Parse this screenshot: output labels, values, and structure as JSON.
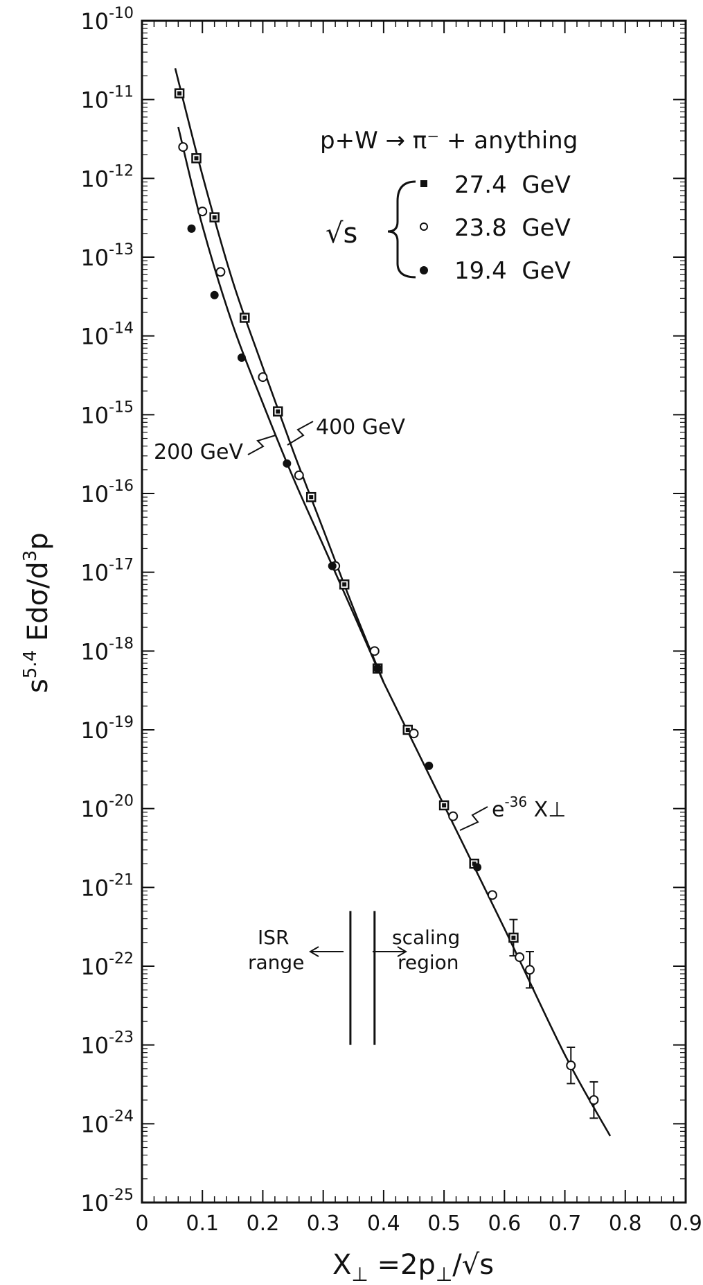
{
  "chart_data": {
    "type": "scatter",
    "title": "",
    "xlabel_main": "X",
    "xlabel_sub": "⊥",
    "xlabel_rest": " =2p",
    "xlabel_sub2": "⊥",
    "xlabel_tail": "/√s",
    "ylabel": "s",
    "ylabel_exp": "5.4",
    "ylabel_rest": " Edσ/d",
    "ylabel_exp2": "3",
    "ylabel_tail": "p",
    "xlim": [
      0,
      0.9
    ],
    "ylim_log10": [
      -25,
      -10
    ],
    "y_scale": "log",
    "x_ticks": [
      "0",
      "0.1",
      "0.2",
      "0.3",
      "0.4",
      "0.5",
      "0.6",
      "0.7",
      "0.8",
      "0.9"
    ],
    "y_ticks": [
      {
        "base": "10",
        "exp": "-10"
      },
      {
        "base": "10",
        "exp": "-11"
      },
      {
        "base": "10",
        "exp": "-12"
      },
      {
        "base": "10",
        "exp": "-13"
      },
      {
        "base": "10",
        "exp": "-14"
      },
      {
        "base": "10",
        "exp": "-15"
      },
      {
        "base": "10",
        "exp": "-16"
      },
      {
        "base": "10",
        "exp": "-17"
      },
      {
        "base": "10",
        "exp": "-18"
      },
      {
        "base": "10",
        "exp": "-19"
      },
      {
        "base": "10",
        "exp": "-20"
      },
      {
        "base": "10",
        "exp": "-21"
      },
      {
        "base": "10",
        "exp": "-22"
      },
      {
        "base": "10",
        "exp": "-23"
      },
      {
        "base": "10",
        "exp": "-24"
      },
      {
        "base": "10",
        "exp": "-25"
      }
    ],
    "legend": {
      "process": "p+W → π⁻ + anything",
      "sqrt_s": "√s",
      "entries": [
        "27.4  GeV",
        "23.8  GeV",
        "19.4  GeV"
      ]
    },
    "series": [
      {
        "name": "27.4  GeV",
        "marker": "filled-square",
        "points": [
          {
            "x": 0.062,
            "y": 1.2e-11
          },
          {
            "x": 0.09,
            "y": 1.8e-12
          },
          {
            "x": 0.12,
            "y": 3.2e-13
          },
          {
            "x": 0.17,
            "y": 1.7e-14
          },
          {
            "x": 0.225,
            "y": 1.1e-15
          },
          {
            "x": 0.28,
            "y": 9e-17
          },
          {
            "x": 0.335,
            "y": 7e-18
          },
          {
            "x": 0.39,
            "y": 6e-19
          },
          {
            "x": 0.44,
            "y": 1e-19
          },
          {
            "x": 0.5,
            "y": 1.1e-20
          },
          {
            "x": 0.55,
            "y": 2e-21
          },
          {
            "x": 0.615,
            "y": 2.3e-22
          }
        ],
        "error_bars_at_x": [
          0.615
        ]
      },
      {
        "name": "23.8  GeV",
        "marker": "open-circle",
        "points": [
          {
            "x": 0.068,
            "y": 2.5e-12
          },
          {
            "x": 0.1,
            "y": 3.8e-13
          },
          {
            "x": 0.13,
            "y": 6.5e-14
          },
          {
            "x": 0.2,
            "y": 3e-15
          },
          {
            "x": 0.26,
            "y": 1.7e-16
          },
          {
            "x": 0.32,
            "y": 1.2e-17
          },
          {
            "x": 0.385,
            "y": 1e-18
          },
          {
            "x": 0.45,
            "y": 9e-20
          },
          {
            "x": 0.515,
            "y": 8e-21
          },
          {
            "x": 0.58,
            "y": 8e-22
          },
          {
            "x": 0.625,
            "y": 1.3e-22
          },
          {
            "x": 0.642,
            "y": 9e-23
          },
          {
            "x": 0.71,
            "y": 5.5e-24
          },
          {
            "x": 0.748,
            "y": 2e-24
          }
        ],
        "error_bars_at_x": [
          0.642,
          0.71,
          0.748
        ]
      },
      {
        "name": "19.4  GeV",
        "marker": "filled-circle",
        "points": [
          {
            "x": 0.082,
            "y": 2.3e-13
          },
          {
            "x": 0.12,
            "y": 3.3e-14
          },
          {
            "x": 0.165,
            "y": 5.3e-15
          },
          {
            "x": 0.24,
            "y": 2.4e-16
          },
          {
            "x": 0.315,
            "y": 1.2e-17
          },
          {
            "x": 0.39,
            "y": 6e-19
          },
          {
            "x": 0.475,
            "y": 3.5e-20
          },
          {
            "x": 0.555,
            "y": 1.8e-21
          }
        ],
        "error_bars_at_x": []
      }
    ],
    "curves": [
      {
        "label": "400 GeV",
        "points": [
          {
            "x": 0.055,
            "y": 2.5e-11
          },
          {
            "x": 0.1,
            "y": 1.1e-12
          },
          {
            "x": 0.15,
            "y": 5e-14
          },
          {
            "x": 0.2,
            "y": 4e-15
          },
          {
            "x": 0.25,
            "y": 3.5e-16
          },
          {
            "x": 0.3,
            "y": 3.5e-17
          },
          {
            "x": 0.35,
            "y": 3.5e-18
          },
          {
            "x": 0.4,
            "y": 4e-19
          }
        ]
      },
      {
        "label": "200 GeV",
        "points": [
          {
            "x": 0.06,
            "y": 4.5e-12
          },
          {
            "x": 0.1,
            "y": 2.5e-13
          },
          {
            "x": 0.15,
            "y": 1.4e-14
          },
          {
            "x": 0.2,
            "y": 1.4e-15
          },
          {
            "x": 0.25,
            "y": 1.6e-16
          },
          {
            "x": 0.3,
            "y": 2.2e-17
          },
          {
            "x": 0.35,
            "y": 3e-18
          },
          {
            "x": 0.4,
            "y": 4e-19
          }
        ]
      },
      {
        "label": "e⁻³⁶ X⊥",
        "points": [
          {
            "x": 0.4,
            "y": 4e-19
          },
          {
            "x": 0.5,
            "y": 1.1e-20
          },
          {
            "x": 0.6,
            "y": 3e-22
          },
          {
            "x": 0.7,
            "y": 7.5e-24
          },
          {
            "x": 0.775,
            "y": 7e-25
          }
        ]
      }
    ],
    "annotations": {
      "label_400": "400 GeV",
      "label_200": "200 GeV",
      "label_exp": "e",
      "label_exp_sup": "-36",
      "label_exp_tail": " X⊥",
      "isr_1": "ISR",
      "isr_2": "range",
      "scaling_1": "scaling",
      "scaling_2": "region",
      "boundary_x": [
        0.345,
        0.385
      ],
      "boundary_y_range_log10": [
        -23,
        -21.3
      ]
    }
  }
}
